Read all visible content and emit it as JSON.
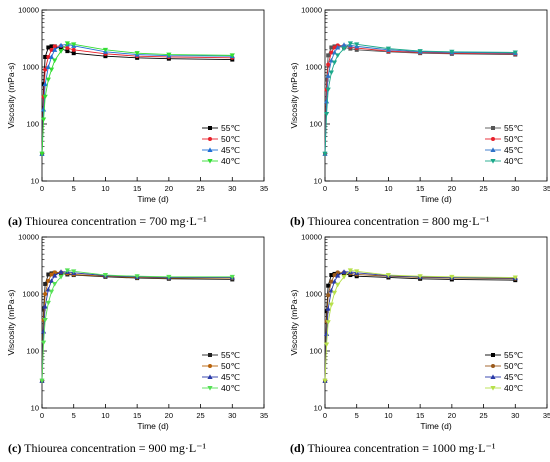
{
  "chart_data": [
    {
      "type": "line",
      "panel_letter": "(a)",
      "caption": "Thiourea concentration = 700 mg·L⁻¹",
      "xlabel": "Time (d)",
      "ylabel": "Viscosity (mPa·s)",
      "xlim": [
        0,
        35
      ],
      "ylim": [
        10,
        10000
      ],
      "yscale": "log",
      "xticks": [
        "0",
        "5",
        "10",
        "15",
        "20",
        "25",
        "30",
        "35"
      ],
      "yticks": [
        "10",
        "100",
        "1000",
        "10000"
      ],
      "legend_position": "bottom-right",
      "x": [
        0,
        0.25,
        0.5,
        1,
        1.5,
        2,
        3,
        4,
        5,
        10,
        15,
        20,
        30
      ],
      "series": [
        {
          "name": "55℃",
          "color": "#000000",
          "marker": "square",
          "values": [
            30,
            500,
            1500,
            2200,
            2300,
            2300,
            2100,
            1900,
            1750,
            1550,
            1450,
            1400,
            1350
          ]
        },
        {
          "name": "50℃",
          "color": "#e8202a",
          "marker": "circle",
          "values": [
            30,
            300,
            900,
            1500,
            2000,
            2300,
            2350,
            2150,
            2000,
            1700,
            1550,
            1500,
            1450
          ]
        },
        {
          "name": "45℃",
          "color": "#1f6fd6",
          "marker": "triangle-up",
          "values": [
            30,
            180,
            500,
            1000,
            1500,
            2000,
            2400,
            2500,
            2350,
            1850,
            1650,
            1580,
            1550
          ]
        },
        {
          "name": "40℃",
          "color": "#33dd33",
          "marker": "triangle-down",
          "values": [
            30,
            120,
            300,
            600,
            900,
            1300,
            1900,
            2600,
            2500,
            2000,
            1750,
            1650,
            1600
          ]
        }
      ]
    },
    {
      "type": "line",
      "panel_letter": "(b)",
      "caption": "Thiourea concentration = 800 mg·L⁻¹",
      "xlabel": "Time (d)",
      "ylabel": "Viscosity (mPa·s)",
      "xlim": [
        0,
        35
      ],
      "ylim": [
        10,
        10000
      ],
      "yscale": "log",
      "xticks": [
        "0",
        "5",
        "10",
        "15",
        "20",
        "25",
        "30",
        "35"
      ],
      "yticks": [
        "10",
        "100",
        "1000",
        "10000"
      ],
      "legend_position": "bottom-right",
      "x": [
        0,
        0.25,
        0.5,
        1,
        1.5,
        2,
        3,
        4,
        5,
        10,
        15,
        20,
        30
      ],
      "series": [
        {
          "name": "55℃",
          "color": "#555555",
          "marker": "square",
          "values": [
            30,
            600,
            1600,
            2200,
            2300,
            2300,
            2200,
            2100,
            2000,
            1850,
            1750,
            1700,
            1650
          ]
        },
        {
          "name": "50℃",
          "color": "#e8202a",
          "marker": "circle",
          "values": [
            30,
            400,
            1100,
            1800,
            2200,
            2400,
            2350,
            2250,
            2150,
            1900,
            1800,
            1750,
            1700
          ]
        },
        {
          "name": "45℃",
          "color": "#2f73c8",
          "marker": "triangle-up",
          "values": [
            30,
            250,
            700,
            1300,
            1800,
            2200,
            2450,
            2400,
            2300,
            2000,
            1850,
            1800,
            1750
          ]
        },
        {
          "name": "40℃",
          "color": "#1aa88a",
          "marker": "triangle-down",
          "values": [
            30,
            150,
            400,
            800,
            1200,
            1600,
            2100,
            2600,
            2500,
            2100,
            1900,
            1850,
            1800
          ]
        }
      ]
    },
    {
      "type": "line",
      "panel_letter": "(c)",
      "caption": "Thiourea concentration = 900 mg·L⁻¹",
      "xlabel": "Time (d)",
      "ylabel": "Viscosity (mPa·s)",
      "xlim": [
        0,
        35
      ],
      "ylim": [
        10,
        10000
      ],
      "yscale": "log",
      "xticks": [
        "0",
        "5",
        "10",
        "15",
        "20",
        "25",
        "30",
        "35"
      ],
      "yticks": [
        "10",
        "100",
        "1000",
        "10000"
      ],
      "legend_position": "bottom-right",
      "x": [
        0,
        0.25,
        0.5,
        1,
        1.5,
        2,
        3,
        4,
        5,
        10,
        15,
        20,
        30
      ],
      "series": [
        {
          "name": "55℃",
          "color": "#222222",
          "marker": "square",
          "values": [
            30,
            550,
            1500,
            2200,
            2300,
            2350,
            2300,
            2200,
            2150,
            2000,
            1900,
            1850,
            1800
          ]
        },
        {
          "name": "50℃",
          "color": "#b8620a",
          "marker": "circle",
          "values": [
            30,
            350,
            1000,
            1700,
            2200,
            2400,
            2400,
            2300,
            2200,
            2050,
            1950,
            1900,
            1900
          ]
        },
        {
          "name": "45℃",
          "color": "#2a3aa8",
          "marker": "triangle-up",
          "values": [
            30,
            220,
            600,
            1200,
            1700,
            2100,
            2450,
            2450,
            2350,
            2100,
            2000,
            1950,
            1950
          ]
        },
        {
          "name": "40℃",
          "color": "#55e055",
          "marker": "triangle-down",
          "values": [
            30,
            140,
            350,
            700,
            1100,
            1500,
            2000,
            2600,
            2500,
            2150,
            2050,
            2000,
            2000
          ]
        }
      ]
    },
    {
      "type": "line",
      "panel_letter": "(d)",
      "caption": "Thiourea concentration = 1000 mg·L⁻¹",
      "xlabel": "Time (d)",
      "ylabel": "Viscosity (mPa·s)",
      "xlim": [
        0,
        35
      ],
      "ylim": [
        10,
        10000
      ],
      "yscale": "log",
      "xticks": [
        "0",
        "5",
        "10",
        "15",
        "20",
        "25",
        "30",
        "35"
      ],
      "yticks": [
        "10",
        "100",
        "1000",
        "10000"
      ],
      "legend_position": "bottom-right",
      "x": [
        0,
        0.25,
        0.5,
        1,
        1.5,
        2,
        3,
        4,
        5,
        10,
        15,
        20,
        30
      ],
      "series": [
        {
          "name": "55℃",
          "color": "#000000",
          "marker": "square",
          "values": [
            30,
            500,
            1400,
            2150,
            2250,
            2300,
            2250,
            2150,
            2050,
            1950,
            1850,
            1800,
            1750
          ]
        },
        {
          "name": "50℃",
          "color": "#9a5a1c",
          "marker": "circle",
          "values": [
            30,
            330,
            950,
            1650,
            2150,
            2400,
            2400,
            2300,
            2200,
            2050,
            1950,
            1900,
            1850
          ]
        },
        {
          "name": "45℃",
          "color": "#2a3aa8",
          "marker": "triangle-up",
          "values": [
            30,
            200,
            550,
            1150,
            1650,
            2100,
            2450,
            2450,
            2350,
            2100,
            2000,
            1950,
            1900
          ]
        },
        {
          "name": "40℃",
          "color": "#b7e04a",
          "marker": "triangle-down",
          "values": [
            30,
            130,
            320,
            650,
            1050,
            1450,
            2000,
            2600,
            2500,
            2150,
            2050,
            2000,
            1950
          ]
        }
      ]
    }
  ]
}
